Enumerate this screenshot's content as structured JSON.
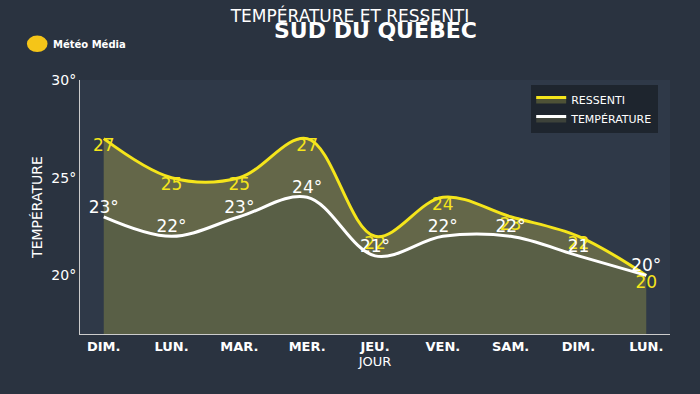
{
  "chart_data": {
    "type": "line",
    "title": "TEMPÉRATURE ET RESSENTI",
    "subtitle": "SUD DU QUÉBEC",
    "annotations": [
      "Météo Média"
    ],
    "x_label": "JOUR",
    "y_label": "TEMPÉRATURE",
    "categories": [
      "DIM.",
      "LUN.",
      "MAR.",
      "MER.",
      "JEU.",
      "VEN.",
      "SAM.",
      "DIM.",
      "LUN."
    ],
    "series": [
      {
        "name": "RESSENTI",
        "color": "#f5e51b",
        "values": [
          27,
          25,
          25,
          27,
          22,
          24,
          23,
          22,
          20
        ]
      },
      {
        "name": "TEMPÉRATURE",
        "color": "#ffffff",
        "values": [
          23,
          22,
          23,
          24,
          21,
          22,
          22,
          21,
          20
        ],
        "value_labels": [
          "23°",
          "22°",
          "23°",
          "24°",
          "21°",
          "22°",
          "22°",
          "21",
          "20°"
        ]
      }
    ],
    "ylim": [
      17,
      30
    ],
    "yticks": [
      {
        "value": 20,
        "label": "20°"
      },
      {
        "value": 25,
        "label": "25°"
      },
      {
        "value": 30,
        "label": "30°"
      }
    ],
    "grid": false,
    "legend": "top right",
    "data_labels": true,
    "line_style": "solid"
  }
}
